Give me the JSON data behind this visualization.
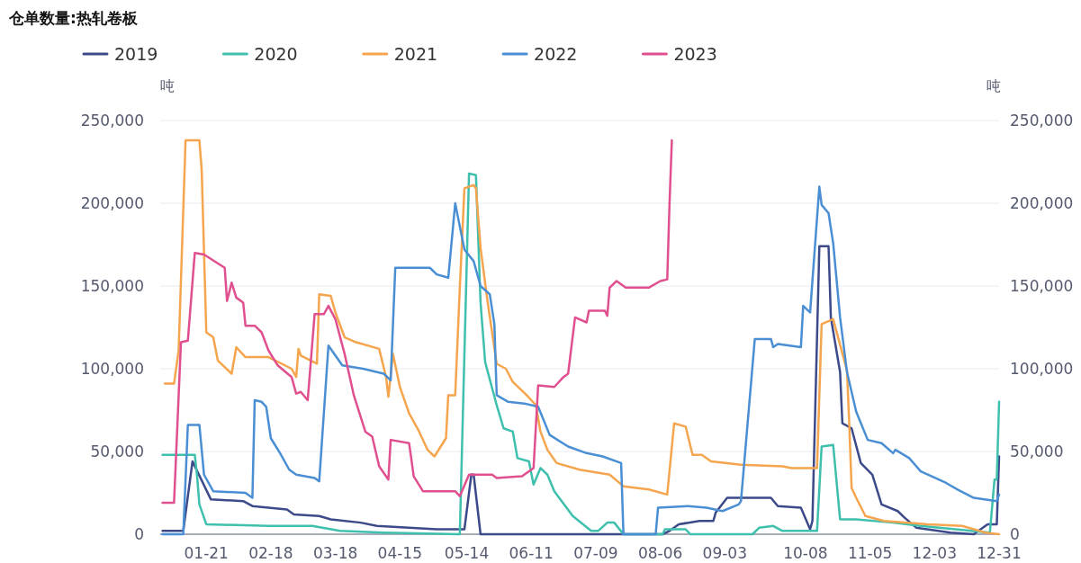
{
  "chart_data": {
    "type": "line",
    "title": "仓单数量:热轧卷板",
    "ylabel": "吨",
    "y2label": "吨",
    "legend": "top left",
    "grid": "y",
    "marker": "none",
    "line_style": "solid",
    "xlim": [
      "--01-01",
      "--12-31"
    ],
    "xticks": [
      {
        "value": "--01-21",
        "label": "01-21"
      },
      {
        "value": "--02-18",
        "label": "02-18"
      },
      {
        "value": "--03-18",
        "label": "03-18"
      },
      {
        "value": "--04-15",
        "label": "04-15"
      },
      {
        "value": "--05-14",
        "label": "05-14"
      },
      {
        "value": "--06-11",
        "label": "06-11"
      },
      {
        "value": "--07-09",
        "label": "07-09"
      },
      {
        "value": "--08-06",
        "label": "08-06"
      },
      {
        "value": "--09-03",
        "label": "09-03"
      },
      {
        "value": "--10-08",
        "label": "10-08"
      },
      {
        "value": "--11-05",
        "label": "11-05"
      },
      {
        "value": "--12-03",
        "label": "12-03"
      },
      {
        "value": "--12-31",
        "label": "12-31"
      }
    ],
    "ylim": [
      0,
      250000
    ],
    "yticks": [
      {
        "value": 0,
        "label": "0"
      },
      {
        "value": 50000,
        "label": "50,000"
      },
      {
        "value": 100000,
        "label": "100,000"
      },
      {
        "value": 150000,
        "label": "150,000"
      },
      {
        "value": 200000,
        "label": "200,000"
      },
      {
        "value": 250000,
        "label": "250,000"
      }
    ],
    "y2lim": [
      0,
      250000
    ],
    "y2ticks": [
      {
        "value": 0,
        "label": "0"
      },
      {
        "value": 50000,
        "label": "50,000"
      },
      {
        "value": 100000,
        "label": "100,000"
      },
      {
        "value": 150000,
        "label": "150,000"
      },
      {
        "value": 200000,
        "label": "200,000"
      },
      {
        "value": 250000,
        "label": "250,000"
      }
    ],
    "series": [
      {
        "name": "2019",
        "color": "#3d4a8a",
        "x": [
          "--01-02",
          "--01-11",
          "--01-15",
          "--01-23",
          "--02-06",
          "--02-10",
          "--02-25",
          "--02-28",
          "--03-11",
          "--03-16",
          "--03-29",
          "--04-05",
          "--05-01",
          "--05-13",
          "--05-16",
          "--05-17",
          "--05-20",
          "--08-07",
          "--08-10",
          "--08-14",
          "--08-23",
          "--08-29",
          "--08-30",
          "--09-04",
          "--09-23",
          "--09-26",
          "--10-06",
          "--10-10",
          "--10-11",
          "--10-14",
          "--10-18",
          "--10-19",
          "--10-23",
          "--10-24",
          "--10-28",
          "--11-01",
          "--11-06",
          "--11-10",
          "--11-17",
          "--11-20",
          "--11-25",
          "--12-10",
          "--12-20",
          "--12-26",
          "--12-30",
          "--12-31"
        ],
        "values": [
          2000,
          2000,
          44000,
          21000,
          20000,
          17000,
          15000,
          12000,
          11000,
          9000,
          7000,
          5000,
          3000,
          3000,
          36000,
          36000,
          0,
          0,
          2000,
          6000,
          8000,
          8000,
          13000,
          22000,
          22000,
          17000,
          16000,
          3000,
          8000,
          174000,
          174000,
          131000,
          98000,
          67000,
          64000,
          43000,
          36000,
          18000,
          14000,
          10000,
          4000,
          1000,
          0,
          6000,
          6000,
          47000
        ]
      },
      {
        "name": "2020",
        "color": "#3fbfad",
        "x": [
          "--01-02",
          "--01-16",
          "--01-17",
          "--01-18",
          "--01-21",
          "--02-17",
          "--03-08",
          "--03-20",
          "--04-08",
          "--05-11",
          "--05-15",
          "--05-18",
          "--05-20",
          "--05-22",
          "--05-27",
          "--05-30",
          "--06-03",
          "--06-05",
          "--06-10",
          "--06-12",
          "--06-15",
          "--06-18",
          "--06-21",
          "--06-29",
          "--07-07",
          "--07-10",
          "--07-14",
          "--07-17",
          "--07-21",
          "--08-07",
          "--08-08",
          "--08-17",
          "--08-19",
          "--09-15",
          "--09-18",
          "--09-24",
          "--09-28",
          "--10-13",
          "--10-15",
          "--10-20",
          "--10-23",
          "--10-30",
          "--11-15",
          "--11-27",
          "--12-27",
          "--12-29",
          "--12-30",
          "--12-31"
        ],
        "values": [
          48000,
          48000,
          35000,
          18000,
          6000,
          5000,
          5000,
          2000,
          1000,
          0,
          218000,
          217000,
          140000,
          104000,
          78000,
          64000,
          62000,
          46000,
          44000,
          30000,
          40000,
          36000,
          26000,
          11000,
          2000,
          2000,
          7000,
          7000,
          0,
          0,
          3000,
          3000,
          0,
          0,
          4000,
          5000,
          2000,
          2000,
          53000,
          54000,
          9000,
          9000,
          7000,
          5000,
          1000,
          33000,
          33000,
          80000
        ]
      },
      {
        "name": "2021",
        "color": "#f4a54e",
        "x": [
          "--01-03",
          "--01-07",
          "--01-09",
          "--01-12",
          "--01-18",
          "--01-19",
          "--01-21",
          "--01-24",
          "--01-26",
          "--02-01",
          "--02-03",
          "--02-07",
          "--02-17",
          "--02-27",
          "--03-01",
          "--03-02",
          "--03-03",
          "--03-10",
          "--03-11",
          "--03-16",
          "--03-18",
          "--03-22",
          "--03-27",
          "--04-06",
          "--04-09",
          "--04-10",
          "--04-12",
          "--04-15",
          "--04-19",
          "--04-23",
          "--04-27",
          "--04-30",
          "--05-05",
          "--05-06",
          "--05-09",
          "--05-11",
          "--05-13",
          "--05-17",
          "--05-18",
          "--05-20",
          "--05-23",
          "--05-27",
          "--05-31",
          "--06-03",
          "--06-09",
          "--06-13",
          "--06-15",
          "--06-18",
          "--06-22",
          "--07-02",
          "--07-15",
          "--07-21",
          "--08-01",
          "--08-09",
          "--08-12",
          "--08-17",
          "--08-20",
          "--08-24",
          "--08-28",
          "--09-10",
          "--09-28",
          "--10-02",
          "--10-13",
          "--10-15",
          "--10-20",
          "--10-26",
          "--10-27",
          "--10-28",
          "--10-30",
          "--11-03",
          "--11-11",
          "--11-30",
          "--12-15",
          "--12-25",
          "--12-31"
        ],
        "values": [
          91000,
          91000,
          111000,
          238000,
          238000,
          220000,
          122000,
          119000,
          105000,
          97000,
          113000,
          107000,
          107000,
          100000,
          95000,
          112000,
          108000,
          103000,
          145000,
          144000,
          134000,
          119000,
          116000,
          112000,
          95000,
          83000,
          109000,
          89000,
          73000,
          63000,
          51000,
          47000,
          58000,
          84000,
          84000,
          149000,
          209000,
          211000,
          209000,
          173000,
          141000,
          103000,
          100000,
          92000,
          84000,
          78000,
          62000,
          51000,
          43000,
          39000,
          36000,
          29000,
          27000,
          24000,
          67000,
          65000,
          48000,
          48000,
          44000,
          42000,
          41000,
          40000,
          40000,
          127000,
          130000,
          99000,
          66000,
          28000,
          22000,
          11000,
          8000,
          6000,
          5000,
          1000,
          0
        ]
      },
      {
        "name": "2022",
        "color": "#4a8fd4",
        "x": [
          "--01-02",
          "--01-11",
          "--01-13",
          "--01-18",
          "--01-20",
          "--01-24",
          "--02-07",
          "--02-10",
          "--02-11",
          "--02-14",
          "--02-16",
          "--02-18",
          "--02-22",
          "--02-26",
          "--03-01",
          "--03-09",
          "--03-11",
          "--03-15",
          "--03-21",
          "--03-30",
          "--04-08",
          "--04-11",
          "--04-13",
          "--04-28",
          "--05-01",
          "--05-06",
          "--05-09",
          "--05-13",
          "--05-17",
          "--05-20",
          "--05-24",
          "--05-26",
          "--05-27",
          "--06-01",
          "--06-08",
          "--06-14",
          "--06-19",
          "--06-27",
          "--07-05",
          "--07-12",
          "--07-20",
          "--07-21",
          "--08-04",
          "--08-05",
          "--08-18",
          "--08-26",
          "--09-02",
          "--09-09",
          "--09-10",
          "--09-16",
          "--09-23",
          "--09-24",
          "--09-26",
          "--10-06",
          "--10-07",
          "--10-10",
          "--10-14",
          "--10-15",
          "--10-18",
          "--10-20",
          "--10-23",
          "--10-26",
          "--10-30",
          "--11-04",
          "--11-10",
          "--11-15",
          "--11-16",
          "--11-22",
          "--11-27",
          "--12-08",
          "--12-13",
          "--12-20",
          "--12-30",
          "--12-31"
        ],
        "values": [
          0,
          0,
          66000,
          66000,
          36000,
          26000,
          25000,
          22000,
          81000,
          80000,
          77000,
          58000,
          49000,
          39000,
          36000,
          34000,
          32000,
          114000,
          102000,
          100000,
          97000,
          93000,
          161000,
          161000,
          157000,
          155000,
          200000,
          172000,
          165000,
          150000,
          145000,
          127000,
          84000,
          80000,
          79000,
          77000,
          60000,
          53000,
          49000,
          47000,
          43000,
          0,
          0,
          16000,
          17000,
          16000,
          14000,
          18000,
          20000,
          118000,
          118000,
          113000,
          115000,
          113000,
          138000,
          134000,
          210000,
          199000,
          194000,
          176000,
          131000,
          98000,
          74000,
          57000,
          55000,
          49000,
          51000,
          46000,
          38000,
          31000,
          27000,
          22000,
          20000,
          24000
        ]
      },
      {
        "name": "2023",
        "color": "#e0508f",
        "x": [
          "--01-02",
          "--01-07",
          "--01-10",
          "--01-13",
          "--01-16",
          "--01-20",
          "--01-29",
          "--01-30",
          "--02-01",
          "--02-03",
          "--02-06",
          "--02-07",
          "--02-11",
          "--02-14",
          "--02-17",
          "--02-21",
          "--02-27",
          "--03-01",
          "--03-03",
          "--03-06",
          "--03-09",
          "--03-13",
          "--03-15",
          "--03-18",
          "--03-22",
          "--03-26",
          "--03-31",
          "--04-03",
          "--04-06",
          "--04-10",
          "--04-11",
          "--04-19",
          "--04-21",
          "--04-25",
          "--05-09",
          "--05-11",
          "--05-15",
          "--05-25",
          "--05-27",
          "--06-07",
          "--06-12",
          "--06-14",
          "--06-21",
          "--06-25",
          "--06-27",
          "--06-30",
          "--07-05",
          "--07-06",
          "--07-13",
          "--07-14",
          "--07-15",
          "--07-18",
          "--07-22",
          "--08-01",
          "--08-06",
          "--08-09",
          "--08-10",
          "--08-11"
        ],
        "values": [
          19000,
          19000,
          116000,
          117000,
          170000,
          169000,
          161000,
          141000,
          152000,
          143000,
          140000,
          126000,
          126000,
          122000,
          111000,
          102000,
          95000,
          85000,
          86000,
          81000,
          133000,
          133000,
          138000,
          130000,
          109000,
          84000,
          62000,
          59000,
          41000,
          33000,
          57000,
          55000,
          35000,
          26000,
          26000,
          23000,
          36000,
          36000,
          34000,
          35000,
          40000,
          90000,
          89000,
          95000,
          97000,
          131000,
          128000,
          135000,
          135000,
          132000,
          149000,
          153000,
          149000,
          149000,
          153000,
          154000,
          200000,
          238000
        ]
      }
    ]
  }
}
